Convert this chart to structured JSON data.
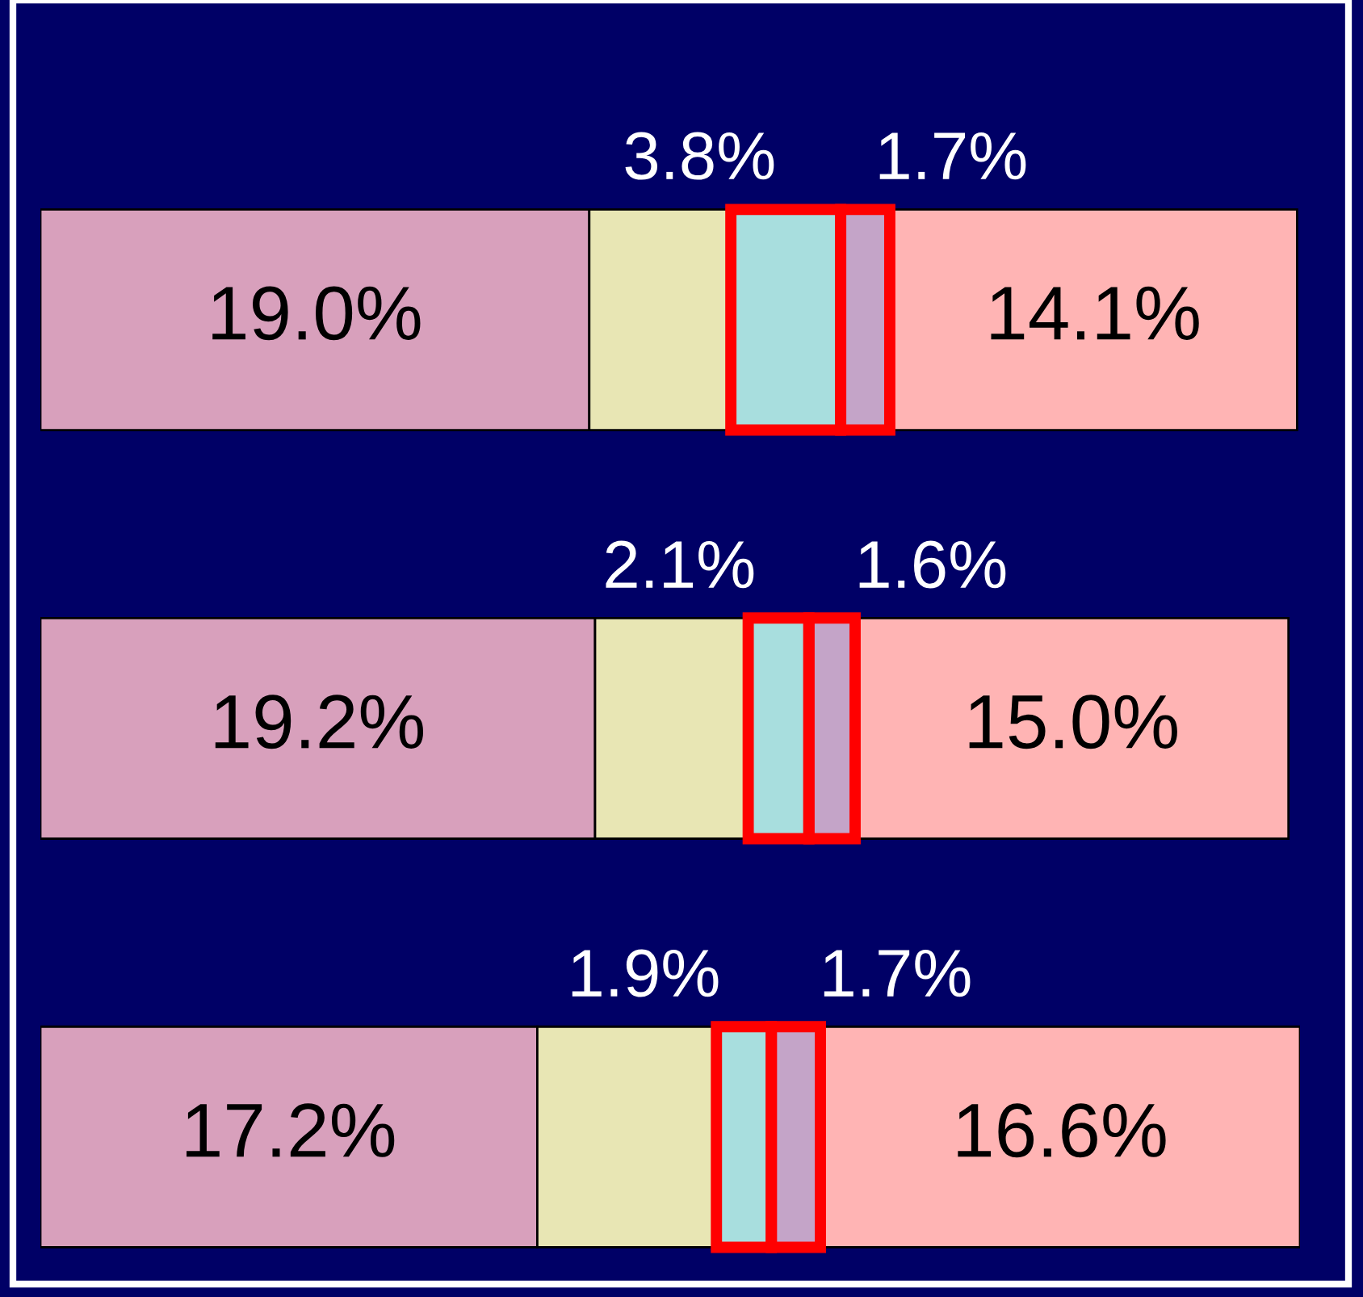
{
  "chart_data": {
    "type": "bar",
    "orientation": "horizontal",
    "stacked": true,
    "categories": [
      null,
      null,
      null
    ],
    "series": [
      {
        "color": "#d8a0bc",
        "values": [
          19.0,
          19.2,
          17.2
        ],
        "value_labels": [
          "19.0%",
          "19.2%",
          "17.2%"
        ]
      },
      {
        "color": "#e8e6b4",
        "values": [
          4.9,
          5.3,
          6.2
        ],
        "value_labels": [
          null,
          null,
          null
        ]
      },
      {
        "color": "#a8dede",
        "values": [
          3.8,
          2.1,
          1.9
        ],
        "value_labels": [
          "3.8%",
          "2.1%",
          "1.9%"
        ]
      },
      {
        "color": "#c4a4c8",
        "values": [
          1.7,
          1.6,
          1.7
        ],
        "value_labels": [
          "1.7%",
          "1.6%",
          "1.7%"
        ]
      },
      {
        "color": "#ffb4b4",
        "values": [
          14.1,
          15.0,
          16.6
        ],
        "value_labels": [
          "14.1%",
          "15.0%",
          "16.6%"
        ]
      }
    ]
  }
}
